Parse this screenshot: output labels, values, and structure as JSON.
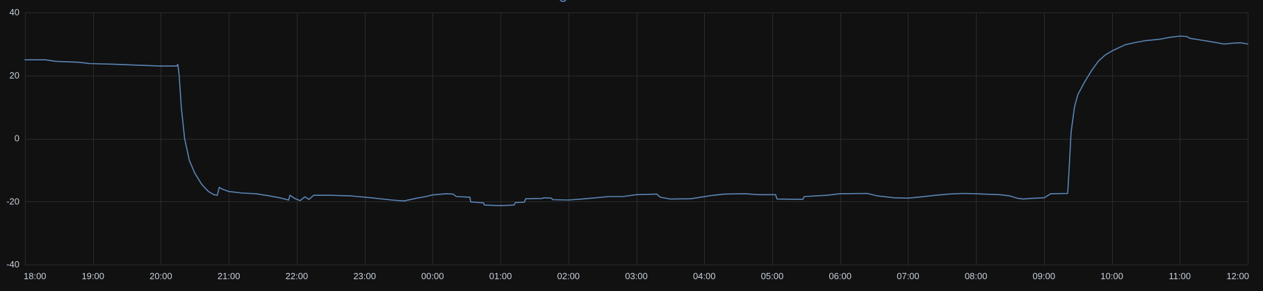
{
  "chart_data": {
    "type": "line",
    "title": "",
    "xlabel": "",
    "ylabel": "",
    "ylim": [
      -40,
      40
    ],
    "yticks": [
      -40,
      -20,
      0,
      20,
      40
    ],
    "x_range_hours": [
      18,
      36
    ],
    "x_tick_labels": [
      "18:00",
      "19:00",
      "20:00",
      "21:00",
      "22:00",
      "23:00",
      "00:00",
      "01:00",
      "02:00",
      "03:00",
      "04:00",
      "05:00",
      "06:00",
      "07:00",
      "08:00",
      "09:00",
      "10:00",
      "11:00",
      "12:00"
    ],
    "grid": true,
    "legend": "none",
    "series_color": "#5b86b5",
    "series": [
      {
        "values": [
          [
            18.0,
            25.0
          ],
          [
            18.3,
            25.0
          ],
          [
            18.45,
            24.5
          ],
          [
            18.8,
            24.2
          ],
          [
            18.95,
            23.8
          ],
          [
            19.3,
            23.6
          ],
          [
            19.65,
            23.3
          ],
          [
            20.0,
            23.0
          ],
          [
            20.23,
            23.0
          ],
          [
            20.25,
            23.5
          ],
          [
            20.27,
            20.0
          ],
          [
            20.3,
            10.0
          ],
          [
            20.35,
            0.0
          ],
          [
            20.42,
            -7.0
          ],
          [
            20.5,
            -11.0
          ],
          [
            20.6,
            -14.5
          ],
          [
            20.7,
            -16.8
          ],
          [
            20.78,
            -17.8
          ],
          [
            20.83,
            -18.0
          ],
          [
            20.86,
            -15.5
          ],
          [
            20.9,
            -16.0
          ],
          [
            21.0,
            -16.8
          ],
          [
            21.2,
            -17.3
          ],
          [
            21.4,
            -17.5
          ],
          [
            21.6,
            -18.2
          ],
          [
            21.75,
            -18.8
          ],
          [
            21.88,
            -19.5
          ],
          [
            21.9,
            -18.0
          ],
          [
            21.97,
            -19.0
          ],
          [
            22.05,
            -19.7
          ],
          [
            22.12,
            -18.5
          ],
          [
            22.18,
            -19.3
          ],
          [
            22.25,
            -18.0
          ],
          [
            22.5,
            -18.0
          ],
          [
            22.8,
            -18.2
          ],
          [
            23.1,
            -18.8
          ],
          [
            23.4,
            -19.5
          ],
          [
            23.58,
            -19.8
          ],
          [
            23.75,
            -19.0
          ],
          [
            23.9,
            -18.4
          ],
          [
            24.0,
            -17.9
          ],
          [
            24.2,
            -17.5
          ],
          [
            24.3,
            -17.6
          ],
          [
            24.35,
            -18.4
          ],
          [
            24.55,
            -18.6
          ],
          [
            24.56,
            -20.1
          ],
          [
            24.75,
            -20.4
          ],
          [
            24.76,
            -21.1
          ],
          [
            25.0,
            -21.3
          ],
          [
            25.2,
            -21.1
          ],
          [
            25.22,
            -20.3
          ],
          [
            25.35,
            -20.2
          ],
          [
            25.37,
            -19.1
          ],
          [
            25.6,
            -19.0
          ],
          [
            25.65,
            -18.8
          ],
          [
            25.75,
            -18.9
          ],
          [
            25.77,
            -19.4
          ],
          [
            26.0,
            -19.5
          ],
          [
            26.2,
            -19.2
          ],
          [
            26.4,
            -18.8
          ],
          [
            26.6,
            -18.4
          ],
          [
            26.8,
            -18.4
          ],
          [
            27.0,
            -17.8
          ],
          [
            27.3,
            -17.6
          ],
          [
            27.35,
            -18.6
          ],
          [
            27.5,
            -19.2
          ],
          [
            27.8,
            -19.1
          ],
          [
            27.95,
            -18.6
          ],
          [
            28.1,
            -18.1
          ],
          [
            28.3,
            -17.6
          ],
          [
            28.6,
            -17.5
          ],
          [
            28.8,
            -17.8
          ],
          [
            29.05,
            -17.8
          ],
          [
            29.07,
            -19.2
          ],
          [
            29.45,
            -19.3
          ],
          [
            29.47,
            -18.4
          ],
          [
            29.8,
            -18.0
          ],
          [
            30.0,
            -17.5
          ],
          [
            30.4,
            -17.4
          ],
          [
            30.55,
            -18.2
          ],
          [
            30.8,
            -18.8
          ],
          [
            31.0,
            -18.9
          ],
          [
            31.2,
            -18.5
          ],
          [
            31.4,
            -18.0
          ],
          [
            31.6,
            -17.6
          ],
          [
            31.8,
            -17.4
          ],
          [
            32.0,
            -17.5
          ],
          [
            32.1,
            -17.6
          ],
          [
            32.35,
            -17.8
          ],
          [
            32.5,
            -18.2
          ],
          [
            32.6,
            -18.9
          ],
          [
            32.7,
            -19.2
          ],
          [
            32.8,
            -19.0
          ],
          [
            33.0,
            -18.8
          ],
          [
            33.05,
            -18.2
          ],
          [
            33.1,
            -17.5
          ],
          [
            33.35,
            -17.4
          ],
          [
            33.37,
            -10.0
          ],
          [
            33.4,
            2.0
          ],
          [
            33.45,
            10.0
          ],
          [
            33.5,
            14.0
          ],
          [
            33.6,
            18.0
          ],
          [
            33.7,
            21.5
          ],
          [
            33.8,
            24.5
          ],
          [
            33.9,
            26.5
          ],
          [
            34.0,
            27.8
          ],
          [
            34.1,
            28.8
          ],
          [
            34.2,
            29.8
          ],
          [
            34.35,
            30.5
          ],
          [
            34.5,
            31.1
          ],
          [
            34.7,
            31.5
          ],
          [
            34.85,
            32.1
          ],
          [
            35.0,
            32.5
          ],
          [
            35.1,
            32.4
          ],
          [
            35.15,
            31.8
          ],
          [
            35.3,
            31.3
          ],
          [
            35.5,
            30.6
          ],
          [
            35.65,
            30.0
          ],
          [
            35.8,
            30.3
          ],
          [
            35.9,
            30.4
          ],
          [
            36.0,
            30.0
          ]
        ]
      }
    ]
  }
}
